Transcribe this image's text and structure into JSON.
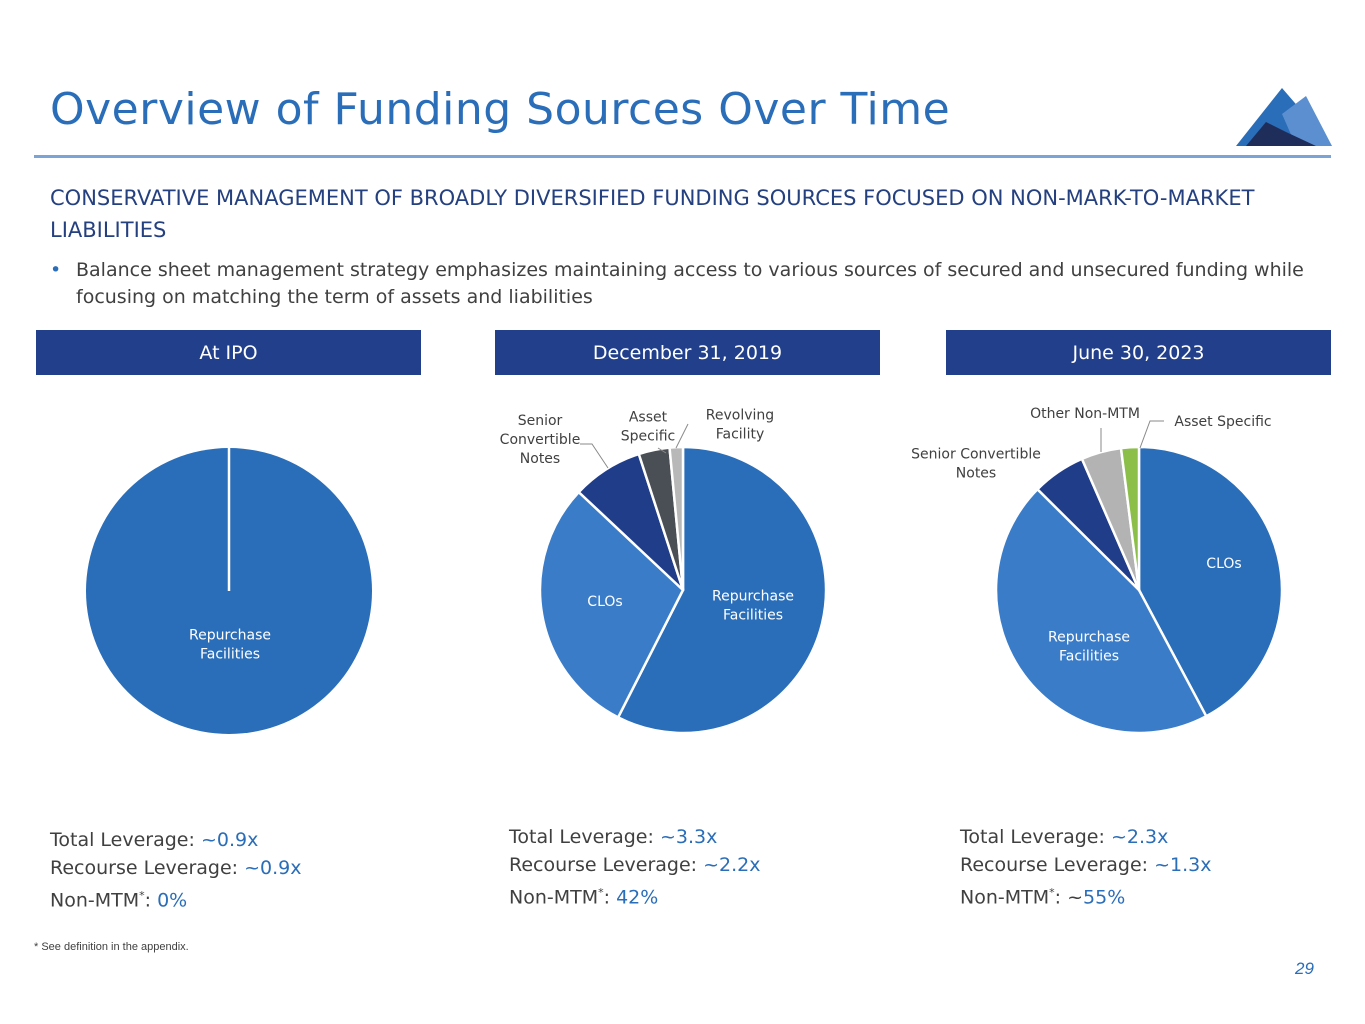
{
  "header": {
    "title": "Overview of Funding Sources Over Time",
    "subtitle": "CONSERVATIVE MANAGEMENT OF BROADLY DIVERSIFIED FUNDING SOURCES FOCUSED ON NON-MARK-TO-MARKET LIABILITIES",
    "bullet": "Balance sheet management strategy emphasizes maintaining access to various sources of secured and unsecured funding while focusing on matching the term of assets and liabilities"
  },
  "colors": {
    "accent": "#2a6db8",
    "header_bar": "#213f8a",
    "repurchase": "#2a6db8",
    "clos": "#3a7cc8",
    "senior_notes": "#203d8a",
    "asset_specific_2019": "#4a4f55",
    "revolving": "#b8b8b8",
    "other_non_mtm": "#b3b3b3",
    "asset_specific_2023": "#8cbf4a"
  },
  "panels": [
    {
      "header": "At IPO",
      "stats": {
        "total_label": "Total Leverage: ",
        "total_value": "~0.9x",
        "recourse_label": "Recourse Leverage: ",
        "recourse_value": "~0.9x",
        "nonmtm_label": "Non-MTM",
        "nonmtm_star": "*",
        "nonmtm_colon": ": ",
        "nonmtm_prefix": "",
        "nonmtm_value": "0%"
      }
    },
    {
      "header": "December 31, 2019",
      "stats": {
        "total_label": "Total Leverage: ",
        "total_value": "~3.3x",
        "recourse_label": "Recourse Leverage: ",
        "recourse_value": "~2.2x",
        "nonmtm_label": "Non-MTM",
        "nonmtm_star": "*",
        "nonmtm_colon": ": ",
        "nonmtm_prefix": "",
        "nonmtm_value": "42%"
      }
    },
    {
      "header": "June 30, 2023",
      "stats": {
        "total_label": "Total Leverage: ",
        "total_value": "~2.3x",
        "recourse_label": "Recourse Leverage: ",
        "recourse_value": "~1.3x",
        "nonmtm_label": "Non-MTM",
        "nonmtm_star": "*",
        "nonmtm_colon": ": ",
        "nonmtm_prefix": "~",
        "nonmtm_value": "55%"
      }
    }
  ],
  "chart_data": [
    {
      "type": "pie",
      "title": "At IPO",
      "slices": [
        {
          "label": "Repurchase Facilities",
          "value": 100,
          "color": "#2a6db8"
        }
      ]
    },
    {
      "type": "pie",
      "title": "December 31, 2019",
      "slices": [
        {
          "label": "Repurchase Facilities",
          "value": 57.5,
          "color": "#2a6db8"
        },
        {
          "label": "CLOs",
          "value": 29.5,
          "color": "#3a7cc8"
        },
        {
          "label": "Senior Convertible Notes",
          "value": 8,
          "color": "#203d8a"
        },
        {
          "label": "Asset Specific",
          "value": 3.5,
          "color": "#4a4f55"
        },
        {
          "label": "Revolving Facility",
          "value": 1.5,
          "color": "#b8b8b8"
        }
      ]
    },
    {
      "type": "pie",
      "title": "June 30, 2023",
      "slices": [
        {
          "label": "CLOs",
          "value": 42,
          "color": "#2a6db8"
        },
        {
          "label": "Repurchase Facilities",
          "value": 45,
          "color": "#3a7cc8"
        },
        {
          "label": "Senior Convertible Notes",
          "value": 6,
          "color": "#203d8a"
        },
        {
          "label": "Other Non-MTM",
          "value": 4.5,
          "color": "#b3b3b3"
        },
        {
          "label": "Asset Specific",
          "value": 2,
          "color": "#8cbf4a"
        }
      ]
    }
  ],
  "footer": {
    "footnote": "* See definition in the appendix.",
    "page_number": "29"
  }
}
